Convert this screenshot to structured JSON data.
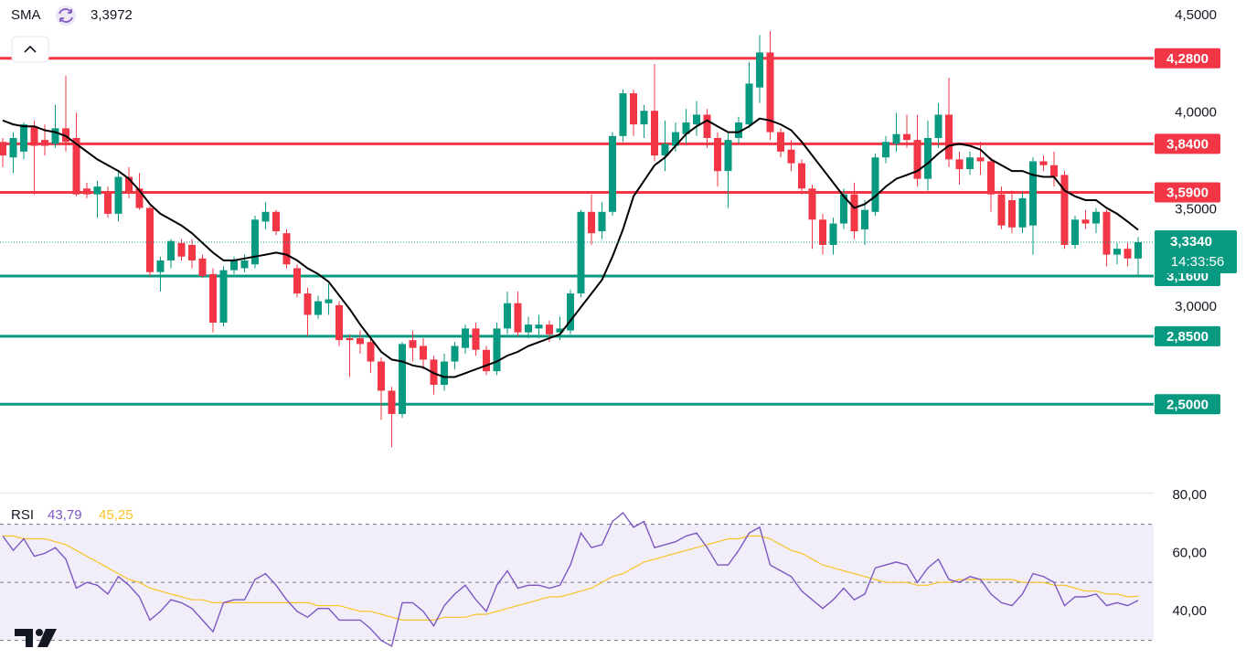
{
  "chart_data": [
    {
      "type": "candlestick",
      "up_color": "#089981",
      "down_color": "#f23645",
      "ohlc": [
        [
          3.85,
          3.87,
          3.72,
          3.78
        ],
        [
          3.77,
          3.9,
          3.69,
          3.87
        ],
        [
          3.8,
          3.95,
          3.76,
          3.94
        ],
        [
          3.93,
          3.96,
          3.58,
          3.83
        ],
        [
          3.86,
          3.94,
          3.78,
          3.83
        ],
        [
          3.84,
          4.04,
          3.82,
          3.92
        ],
        [
          3.92,
          4.19,
          3.8,
          3.85
        ],
        [
          3.87,
          4.0,
          3.57,
          3.58
        ],
        [
          3.61,
          3.64,
          3.56,
          3.58
        ],
        [
          3.58,
          3.65,
          3.46,
          3.62
        ],
        [
          3.59,
          3.62,
          3.46,
          3.48
        ],
        [
          3.48,
          3.7,
          3.44,
          3.67
        ],
        [
          3.67,
          3.72,
          3.56,
          3.59
        ],
        [
          3.61,
          3.69,
          3.5,
          3.51
        ],
        [
          3.51,
          3.52,
          3.16,
          3.18
        ],
        [
          3.18,
          3.26,
          3.08,
          3.24
        ],
        [
          3.24,
          3.35,
          3.2,
          3.34
        ],
        [
          3.33,
          3.35,
          3.24,
          3.26
        ],
        [
          3.32,
          3.35,
          3.2,
          3.24
        ],
        [
          3.25,
          3.27,
          3.15,
          3.16
        ],
        [
          3.17,
          3.2,
          2.87,
          2.92
        ],
        [
          2.92,
          3.21,
          2.9,
          3.19
        ],
        [
          3.19,
          3.26,
          3.17,
          3.24
        ],
        [
          3.2,
          3.27,
          3.18,
          3.24
        ],
        [
          3.22,
          3.47,
          3.2,
          3.45
        ],
        [
          3.44,
          3.54,
          3.4,
          3.49
        ],
        [
          3.49,
          3.5,
          3.37,
          3.39
        ],
        [
          3.38,
          3.4,
          3.2,
          3.22
        ],
        [
          3.2,
          3.22,
          3.05,
          3.07
        ],
        [
          3.07,
          3.1,
          2.85,
          2.96
        ],
        [
          2.96,
          3.06,
          2.94,
          3.03
        ],
        [
          3.02,
          3.12,
          2.96,
          3.04
        ],
        [
          3.01,
          3.03,
          2.8,
          2.83
        ],
        [
          2.84,
          2.86,
          2.64,
          2.83
        ],
        [
          2.84,
          2.88,
          2.76,
          2.81
        ],
        [
          2.82,
          2.84,
          2.66,
          2.72
        ],
        [
          2.72,
          2.74,
          2.42,
          2.57
        ],
        [
          2.57,
          2.59,
          2.28,
          2.45
        ],
        [
          2.45,
          2.82,
          2.43,
          2.81
        ],
        [
          2.83,
          2.88,
          2.72,
          2.79
        ],
        [
          2.8,
          2.84,
          2.68,
          2.73
        ],
        [
          2.73,
          2.75,
          2.55,
          2.6
        ],
        [
          2.6,
          2.76,
          2.57,
          2.72
        ],
        [
          2.72,
          2.82,
          2.68,
          2.8
        ],
        [
          2.79,
          2.91,
          2.76,
          2.89
        ],
        [
          2.89,
          2.92,
          2.75,
          2.78
        ],
        [
          2.78,
          2.8,
          2.65,
          2.67
        ],
        [
          2.67,
          2.92,
          2.65,
          2.89
        ],
        [
          2.89,
          3.08,
          2.86,
          3.02
        ],
        [
          3.02,
          3.08,
          2.85,
          2.87
        ],
        [
          2.87,
          2.95,
          2.84,
          2.91
        ],
        [
          2.89,
          2.96,
          2.84,
          2.91
        ],
        [
          2.91,
          2.93,
          2.82,
          2.86
        ],
        [
          2.87,
          2.95,
          2.83,
          2.89
        ],
        [
          2.88,
          3.09,
          2.86,
          3.07
        ],
        [
          3.07,
          3.5,
          3.05,
          3.49
        ],
        [
          3.49,
          3.58,
          3.32,
          3.38
        ],
        [
          3.39,
          3.54,
          3.35,
          3.49
        ],
        [
          3.49,
          3.9,
          3.47,
          3.88
        ],
        [
          3.88,
          4.12,
          3.85,
          4.1
        ],
        [
          4.1,
          4.12,
          3.88,
          3.94
        ],
        [
          3.94,
          4.04,
          3.87,
          4.01
        ],
        [
          4.01,
          4.25,
          3.75,
          3.78
        ],
        [
          3.78,
          3.96,
          3.7,
          3.84
        ],
        [
          3.83,
          3.95,
          3.8,
          3.9
        ],
        [
          3.89,
          4.02,
          3.84,
          3.95
        ],
        [
          3.94,
          4.06,
          3.88,
          3.99
        ],
        [
          3.99,
          4.02,
          3.82,
          3.87
        ],
        [
          3.87,
          3.9,
          3.62,
          3.7
        ],
        [
          3.7,
          3.9,
          3.51,
          3.86
        ],
        [
          3.87,
          3.98,
          3.84,
          3.95
        ],
        [
          3.94,
          4.26,
          3.92,
          4.15
        ],
        [
          4.13,
          4.4,
          4.05,
          4.31
        ],
        [
          4.31,
          4.42,
          3.86,
          3.9
        ],
        [
          3.9,
          3.92,
          3.77,
          3.8
        ],
        [
          3.81,
          3.86,
          3.7,
          3.74
        ],
        [
          3.74,
          3.76,
          3.58,
          3.61
        ],
        [
          3.61,
          3.63,
          3.3,
          3.45
        ],
        [
          3.45,
          3.48,
          3.27,
          3.32
        ],
        [
          3.32,
          3.46,
          3.27,
          3.43
        ],
        [
          3.43,
          3.61,
          3.4,
          3.58
        ],
        [
          3.58,
          3.64,
          3.35,
          3.39
        ],
        [
          3.4,
          3.55,
          3.32,
          3.5
        ],
        [
          3.49,
          3.79,
          3.47,
          3.77
        ],
        [
          3.77,
          3.88,
          3.74,
          3.85
        ],
        [
          3.84,
          4.0,
          3.8,
          3.89
        ],
        [
          3.89,
          3.99,
          3.82,
          3.86
        ],
        [
          3.86,
          3.99,
          3.62,
          3.66
        ],
        [
          3.66,
          3.96,
          3.6,
          3.87
        ],
        [
          3.87,
          4.05,
          3.82,
          3.99
        ],
        [
          3.99,
          4.18,
          3.72,
          3.76
        ],
        [
          3.76,
          3.8,
          3.63,
          3.71
        ],
        [
          3.71,
          3.8,
          3.68,
          3.77
        ],
        [
          3.77,
          3.85,
          3.68,
          3.75
        ],
        [
          3.75,
          3.77,
          3.49,
          3.58
        ],
        [
          3.58,
          3.62,
          3.4,
          3.42
        ],
        [
          3.55,
          3.6,
          3.38,
          3.41
        ],
        [
          3.41,
          3.59,
          3.38,
          3.56
        ],
        [
          3.42,
          3.77,
          3.27,
          3.75
        ],
        [
          3.75,
          3.78,
          3.7,
          3.73
        ],
        [
          3.73,
          3.8,
          3.62,
          3.67
        ],
        [
          3.68,
          3.7,
          3.3,
          3.32
        ],
        [
          3.32,
          3.47,
          3.3,
          3.45
        ],
        [
          3.45,
          3.5,
          3.4,
          3.43
        ],
        [
          3.43,
          3.51,
          3.38,
          3.49
        ],
        [
          3.49,
          3.5,
          3.21,
          3.27
        ],
        [
          3.27,
          3.33,
          3.22,
          3.3
        ],
        [
          3.3,
          3.33,
          3.21,
          3.25
        ],
        [
          3.25,
          3.36,
          3.16,
          3.334
        ]
      ],
      "sma": {
        "name": "SMA",
        "color": "#000000",
        "last_value_label": "3,3972",
        "values": [
          3.96,
          3.94,
          3.93,
          3.93,
          3.91,
          3.9,
          3.88,
          3.84,
          3.8,
          3.76,
          3.73,
          3.7,
          3.66,
          3.6,
          3.53,
          3.48,
          3.45,
          3.42,
          3.38,
          3.33,
          3.28,
          3.24,
          3.24,
          3.25,
          3.26,
          3.27,
          3.28,
          3.27,
          3.24,
          3.2,
          3.17,
          3.13,
          3.06,
          2.99,
          2.91,
          2.84,
          2.77,
          2.73,
          2.72,
          2.7,
          2.69,
          2.66,
          2.64,
          2.64,
          2.66,
          2.68,
          2.7,
          2.72,
          2.75,
          2.77,
          2.8,
          2.82,
          2.84,
          2.86,
          2.93,
          3.0,
          3.07,
          3.14,
          3.26,
          3.4,
          3.57,
          3.65,
          3.73,
          3.77,
          3.83,
          3.89,
          3.93,
          3.96,
          3.93,
          3.9,
          3.9,
          3.93,
          3.97,
          3.96,
          3.94,
          3.91,
          3.85,
          3.78,
          3.71,
          3.64,
          3.57,
          3.51,
          3.53,
          3.57,
          3.62,
          3.66,
          3.68,
          3.7,
          3.74,
          3.79,
          3.83,
          3.84,
          3.83,
          3.81,
          3.76,
          3.73,
          3.7,
          3.7,
          3.68,
          3.67,
          3.67,
          3.6,
          3.57,
          3.55,
          3.55,
          3.51,
          3.48,
          3.44,
          3.3972
        ]
      },
      "last_price": {
        "value": 3.334,
        "label": "3,3340"
      },
      "countdown": "14:33:56",
      "levels": [
        {
          "value": 4.28,
          "label": "4,2800",
          "color": "#f23645"
        },
        {
          "value": 3.84,
          "label": "3,8400",
          "color": "#f23645"
        },
        {
          "value": 3.59,
          "label": "3,5900",
          "color": "#f23645"
        },
        {
          "value": 3.16,
          "label": "3,1600",
          "color": "#089981"
        },
        {
          "value": 2.85,
          "label": "2,8500",
          "color": "#089981"
        },
        {
          "value": 2.5,
          "label": "2,5000",
          "color": "#089981"
        }
      ],
      "ylim": [
        2.05,
        4.58
      ],
      "yticks": [
        {
          "value": 4.5,
          "label": "4,5000"
        },
        {
          "value": 4,
          "label": "4,0000"
        },
        {
          "value": 3.5,
          "label": "3,5000"
        },
        {
          "value": 3,
          "label": "3,0000"
        }
      ]
    },
    {
      "type": "line",
      "title": "RSI",
      "series": [
        {
          "color": "#7e57c2",
          "last_value_label": "43,79",
          "values": [
            66,
            61,
            65,
            59,
            60,
            62,
            58,
            48,
            50,
            49,
            46,
            52,
            49,
            45,
            37,
            40,
            44,
            43,
            41,
            37,
            33,
            43,
            44,
            44,
            51,
            53,
            49,
            44,
            40,
            38,
            41,
            41,
            37,
            37,
            37,
            34,
            30,
            28,
            43,
            43,
            40,
            35,
            42,
            46,
            49,
            44,
            40,
            49,
            54,
            48,
            49,
            49,
            48,
            49,
            56,
            67,
            62,
            63,
            71,
            74,
            69,
            71,
            62,
            63,
            64,
            66,
            67,
            62,
            56,
            56,
            61,
            67,
            69,
            56,
            54,
            52,
            47,
            44,
            41,
            44,
            48,
            44,
            46,
            55,
            56,
            57,
            56,
            50,
            55,
            58,
            51,
            50,
            52,
            51,
            46,
            43,
            42,
            46,
            53,
            52,
            50,
            42,
            45,
            45,
            46,
            42,
            43,
            42,
            43.79
          ]
        },
        {
          "color": "#f7c325",
          "last_value_label": "45,25",
          "values": [
            66,
            66,
            65,
            65,
            65,
            64,
            63,
            61,
            59,
            57,
            55,
            53,
            51,
            50,
            48,
            47,
            46,
            45,
            44,
            44,
            43,
            43,
            43,
            43,
            43,
            43,
            43,
            43,
            43,
            43,
            42,
            42,
            42,
            41,
            40,
            40,
            39,
            38,
            37,
            37,
            37,
            37,
            38,
            38,
            38,
            39,
            39,
            40,
            41,
            42,
            43,
            44,
            45,
            45,
            46,
            47,
            48,
            50,
            52,
            53,
            55,
            57,
            58,
            59,
            60,
            61,
            62,
            63,
            64,
            65,
            65,
            66,
            66,
            65,
            63,
            61,
            60,
            58,
            56,
            55,
            54,
            53,
            52,
            51,
            50,
            50,
            50,
            49,
            49,
            50,
            50,
            51,
            51,
            51,
            51,
            51,
            51,
            50,
            50,
            50,
            49,
            49,
            48,
            47,
            47,
            46,
            46,
            45,
            45.25
          ]
        }
      ],
      "levels": [
        70,
        50,
        30
      ],
      "band": [
        30,
        70
      ],
      "ylim": [
        23.6,
        80.6
      ],
      "yticks": [
        {
          "value": 80,
          "label": "80,00"
        },
        {
          "value": 60,
          "label": "60,00"
        },
        {
          "value": 40,
          "label": "40,00"
        }
      ]
    }
  ]
}
